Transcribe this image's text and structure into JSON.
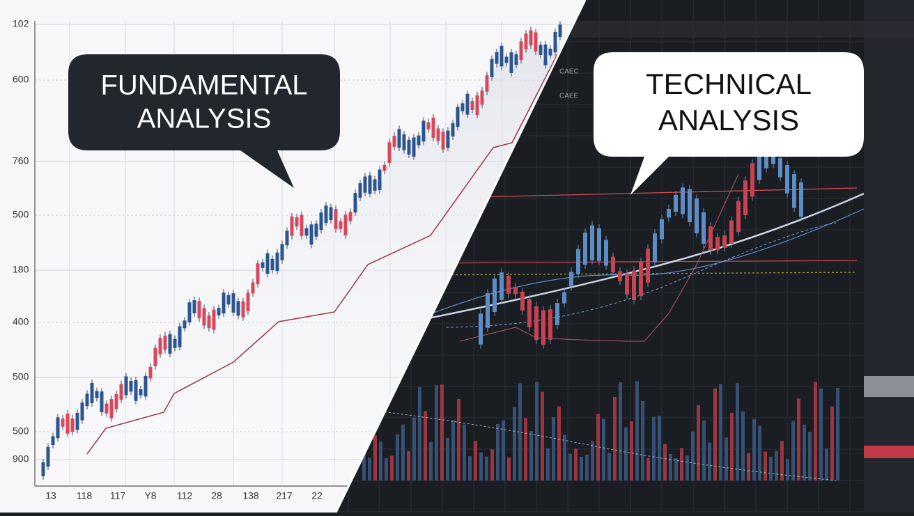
{
  "left_panel": {
    "bubble": {
      "lines": [
        "FUNDAMENTAL",
        "ANALYSIS"
      ]
    },
    "y_labels": [
      "102",
      "600",
      "760",
      "500",
      "180",
      "400",
      "500",
      "500",
      "900"
    ],
    "x_labels": [
      "13",
      "118",
      "117",
      "Y8",
      "112",
      "28",
      "138",
      "217",
      "22"
    ]
  },
  "right_panel": {
    "bubble": {
      "lines": [
        "TECHNICAL",
        "ANALYSIS"
      ]
    },
    "tags": [
      "CAEC",
      "CAEE"
    ]
  }
}
